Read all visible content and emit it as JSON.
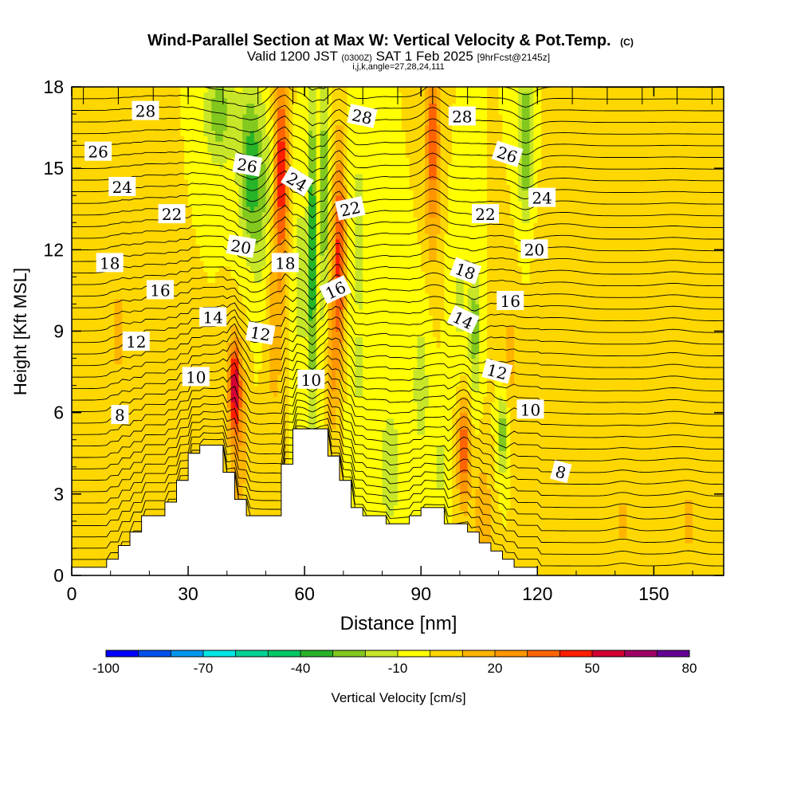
{
  "header": {
    "title": "Wind-Parallel Section at Max W: Vertical Velocity & Pot.Temp.",
    "copyright": "(C)",
    "valid_prefix": "Valid 1200 JST",
    "valid_utc": "(0300Z)",
    "valid_date": "SAT 1 Feb 2025",
    "forecast": "[9hrFcst@2145z]",
    "indices": "i,j,k,angle=27,28,24,111"
  },
  "chart_data": {
    "type": "heatmap",
    "xlabel": "Distance [nm]",
    "ylabel": "Height [Kft MSL]",
    "xlim": [
      0,
      168
    ],
    "ylim": [
      0,
      18
    ],
    "x_ticks": [
      "0",
      "30",
      "60",
      "90",
      "120",
      "150"
    ],
    "x_tick_values": [
      0,
      30,
      60,
      90,
      120,
      150
    ],
    "y_ticks": [
      "0",
      "3",
      "6",
      "9",
      "12",
      "15",
      "18"
    ],
    "y_tick_values": [
      0,
      3,
      6,
      9,
      12,
      15,
      18
    ],
    "colorbar": {
      "label": "Vertical Velocity [cm/s]",
      "tick_labels": [
        "-100",
        "-70",
        "-40",
        "-10",
        "20",
        "50",
        "80"
      ],
      "tick_values": [
        -100,
        -70,
        -40,
        -10,
        20,
        50,
        80
      ],
      "bounds": [
        -100,
        -90,
        -80,
        -70,
        -60,
        -50,
        -40,
        -30,
        -20,
        -10,
        0,
        10,
        20,
        30,
        40,
        50,
        60,
        70,
        80
      ],
      "colors": [
        "#0000ff",
        "#0050ee",
        "#0096ee",
        "#00e6e6",
        "#00d296",
        "#00c864",
        "#28b428",
        "#82c81e",
        "#c8e628",
        "#ffff00",
        "#ffd700",
        "#ffb400",
        "#ff9600",
        "#ff6400",
        "#ff1e00",
        "#d20032",
        "#a00064",
        "#640096"
      ]
    },
    "background_w": 0,
    "w_features": [
      {
        "x": 32,
        "y": 4,
        "sx": 3,
        "sy": 2.5,
        "w": 8
      },
      {
        "x": 42,
        "y": 7,
        "sx": 1.5,
        "sy": 1.6,
        "w": 52
      },
      {
        "x": 43,
        "y": 5,
        "sx": 2.5,
        "sy": 3.5,
        "w": 18
      },
      {
        "x": 46,
        "y": 15,
        "sx": 3,
        "sy": 3,
        "w": -35
      },
      {
        "x": 38,
        "y": 17,
        "sx": 4,
        "sy": 2,
        "w": -25
      },
      {
        "x": 50,
        "y": 13,
        "sx": 3,
        "sy": 4,
        "w": -18
      },
      {
        "x": 54,
        "y": 15,
        "sx": 1.8,
        "sy": 3.5,
        "w": 48
      },
      {
        "x": 52,
        "y": 10,
        "sx": 2.5,
        "sy": 4,
        "w": 22
      },
      {
        "x": 59,
        "y": 11,
        "sx": 2.2,
        "sy": 4,
        "w": -14
      },
      {
        "x": 62,
        "y": 12,
        "sx": 1,
        "sy": 6,
        "w": -42
      },
      {
        "x": 65,
        "y": 14,
        "sx": 1,
        "sy": 5,
        "w": -32
      },
      {
        "x": 69,
        "y": 12,
        "sx": 1.5,
        "sy": 4,
        "w": 44
      },
      {
        "x": 67,
        "y": 8,
        "sx": 1.5,
        "sy": 3,
        "w": 22
      },
      {
        "x": 74,
        "y": 13,
        "sx": 2.5,
        "sy": 5,
        "w": -12
      },
      {
        "x": 74,
        "y": 6.5,
        "sx": 3,
        "sy": 3,
        "w": -8
      },
      {
        "x": 82,
        "y": 4,
        "sx": 3,
        "sy": 2.5,
        "w": -18
      },
      {
        "x": 90,
        "y": 7,
        "sx": 2.5,
        "sy": 3,
        "w": -15
      },
      {
        "x": 93,
        "y": 16,
        "sx": 2,
        "sy": 4,
        "w": 36
      },
      {
        "x": 95,
        "y": 4,
        "sx": 2,
        "sy": 2,
        "w": -12
      },
      {
        "x": 101,
        "y": 4.6,
        "sx": 1.6,
        "sy": 2,
        "w": 40
      },
      {
        "x": 100,
        "y": 10,
        "sx": 2.5,
        "sy": 3,
        "w": -12
      },
      {
        "x": 104,
        "y": 9,
        "sx": 1.5,
        "sy": 2.5,
        "w": -25
      },
      {
        "x": 111,
        "y": 5.3,
        "sx": 1.5,
        "sy": 1.6,
        "w": -30
      },
      {
        "x": 117,
        "y": 16,
        "sx": 2,
        "sy": 3,
        "w": -30
      },
      {
        "x": 113,
        "y": 8,
        "sx": 3,
        "sy": 3,
        "w": 12
      },
      {
        "x": 106,
        "y": 2,
        "sx": 2.5,
        "sy": 2.5,
        "w": 18
      },
      {
        "x": 20,
        "y": 10,
        "sx": 5,
        "sy": 5,
        "w": 6
      },
      {
        "x": 12,
        "y": 9,
        "sx": 2,
        "sy": 3,
        "w": 12
      },
      {
        "x": 122,
        "y": 10,
        "sx": 3,
        "sy": 4,
        "w": 8
      },
      {
        "x": 128,
        "y": 12,
        "sx": 3,
        "sy": 3,
        "w": 10
      },
      {
        "x": 142,
        "y": 2,
        "sx": 2,
        "sy": 2,
        "w": 12
      },
      {
        "x": 155,
        "y": 8,
        "sx": 3,
        "sy": 4,
        "w": 10
      },
      {
        "x": 159,
        "y": 2,
        "sx": 2,
        "sy": 1.5,
        "w": 14
      }
    ],
    "terrain_ft": [
      [
        0,
        0.3
      ],
      [
        9,
        0.3
      ],
      [
        9,
        0.6
      ],
      [
        12,
        0.6
      ],
      [
        12,
        1.1
      ],
      [
        15,
        1.1
      ],
      [
        15,
        1.6
      ],
      [
        18,
        1.6
      ],
      [
        18,
        2.2
      ],
      [
        24,
        2.2
      ],
      [
        24,
        2.7
      ],
      [
        27,
        2.7
      ],
      [
        27,
        3.5
      ],
      [
        30,
        3.5
      ],
      [
        30,
        4.5
      ],
      [
        33,
        4.5
      ],
      [
        33,
        4.8
      ],
      [
        39,
        4.8
      ],
      [
        39,
        3.8
      ],
      [
        42,
        3.8
      ],
      [
        42,
        2.8
      ],
      [
        45,
        2.8
      ],
      [
        45,
        2.2
      ],
      [
        54,
        2.2
      ],
      [
        54,
        4.1
      ],
      [
        57,
        4.1
      ],
      [
        57,
        5.4
      ],
      [
        66,
        5.4
      ],
      [
        66,
        4.4
      ],
      [
        69,
        4.4
      ],
      [
        69,
        3.5
      ],
      [
        72,
        3.5
      ],
      [
        72,
        2.5
      ],
      [
        75,
        2.5
      ],
      [
        75,
        2.2
      ],
      [
        81,
        2.2
      ],
      [
        81,
        1.9
      ],
      [
        87,
        1.9
      ],
      [
        87,
        2.2
      ],
      [
        90,
        2.2
      ],
      [
        90,
        2.5
      ],
      [
        96,
        2.5
      ],
      [
        96,
        1.9
      ],
      [
        102,
        1.9
      ],
      [
        102,
        1.6
      ],
      [
        105,
        1.6
      ],
      [
        105,
        1.2
      ],
      [
        108,
        1.2
      ],
      [
        108,
        0.9
      ],
      [
        111,
        0.9
      ],
      [
        111,
        0.6
      ],
      [
        114,
        0.6
      ],
      [
        114,
        0.3
      ],
      [
        120,
        0.3
      ],
      [
        120,
        0
      ],
      [
        168,
        0
      ]
    ],
    "contour_labels": [
      {
        "text": "8",
        "x": 12.4,
        "y": 5.9,
        "rot": 0
      },
      {
        "text": "10",
        "x": 32.0,
        "y": 7.3,
        "rot": 0
      },
      {
        "text": "12",
        "x": 16.6,
        "y": 8.6,
        "rot": 0
      },
      {
        "text": "14",
        "x": 36.4,
        "y": 9.5,
        "rot": 0
      },
      {
        "text": "16",
        "x": 22.8,
        "y": 10.5,
        "rot": 0
      },
      {
        "text": "18",
        "x": 9.8,
        "y": 11.5,
        "rot": 0
      },
      {
        "text": "20",
        "x": 43.6,
        "y": 12.1,
        "rot": 10
      },
      {
        "text": "22",
        "x": 25.8,
        "y": 13.3,
        "rot": 0
      },
      {
        "text": "24",
        "x": 13.0,
        "y": 14.3,
        "rot": 0
      },
      {
        "text": "26",
        "x": 6.8,
        "y": 15.6,
        "rot": 0
      },
      {
        "text": "28",
        "x": 19.0,
        "y": 17.1,
        "rot": 0
      },
      {
        "text": "12",
        "x": 48.6,
        "y": 8.9,
        "rot": 10
      },
      {
        "text": "10",
        "x": 61.7,
        "y": 7.2,
        "rot": 0
      },
      {
        "text": "18",
        "x": 55.0,
        "y": 11.5,
        "rot": 0
      },
      {
        "text": "26",
        "x": 45.2,
        "y": 15.1,
        "rot": 10
      },
      {
        "text": "24",
        "x": 58.0,
        "y": 14.5,
        "rot": 32
      },
      {
        "text": "16",
        "x": 68.0,
        "y": 10.5,
        "rot": -25
      },
      {
        "text": "22",
        "x": 71.8,
        "y": 13.5,
        "rot": -12
      },
      {
        "text": "28",
        "x": 74.8,
        "y": 16.9,
        "rot": 12
      },
      {
        "text": "28",
        "x": 100.6,
        "y": 16.9,
        "rot": 0
      },
      {
        "text": "26",
        "x": 112.2,
        "y": 15.5,
        "rot": 18
      },
      {
        "text": "24",
        "x": 121.2,
        "y": 13.9,
        "rot": 0
      },
      {
        "text": "22",
        "x": 106.6,
        "y": 13.3,
        "rot": 0
      },
      {
        "text": "20",
        "x": 119.2,
        "y": 12.0,
        "rot": 0
      },
      {
        "text": "18",
        "x": 101.4,
        "y": 11.2,
        "rot": 20
      },
      {
        "text": "16",
        "x": 113.0,
        "y": 10.1,
        "rot": 0
      },
      {
        "text": "14",
        "x": 100.8,
        "y": 9.4,
        "rot": 25
      },
      {
        "text": "12",
        "x": 109.6,
        "y": 7.5,
        "rot": 15
      },
      {
        "text": "10",
        "x": 118.2,
        "y": 6.1,
        "rot": 0
      },
      {
        "text": "8",
        "x": 126.0,
        "y": 3.8,
        "rot": 15
      }
    ]
  }
}
